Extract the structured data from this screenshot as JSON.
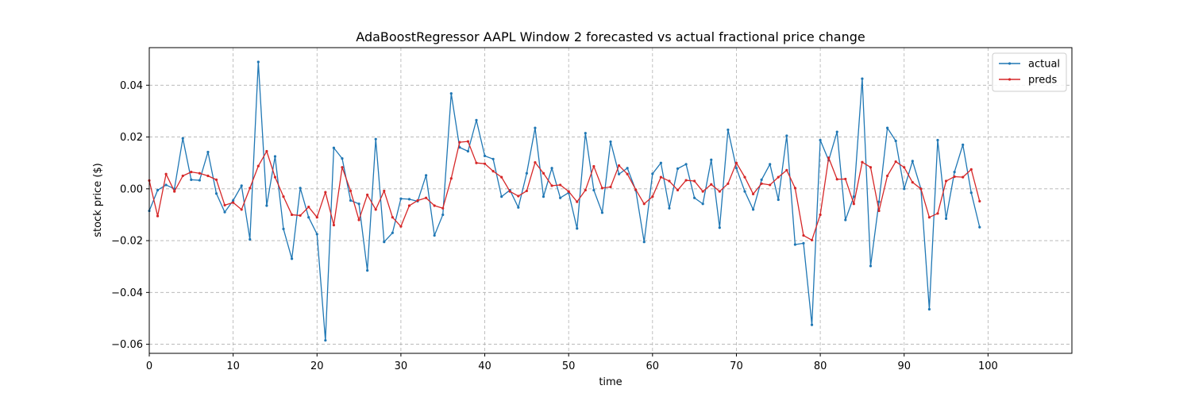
{
  "chart_data": {
    "type": "line",
    "title": "AdaBoostRegressor AAPL Window 2 forecasted vs actual fractional price change",
    "xlabel": "time",
    "ylabel": "stock price ($)",
    "xlim": [
      0,
      110
    ],
    "ylim": [
      -0.0635,
      0.0545
    ],
    "xticks": [
      0,
      10,
      20,
      30,
      40,
      50,
      60,
      70,
      80,
      90,
      100
    ],
    "yticks": [
      -0.06,
      -0.04,
      -0.02,
      0.0,
      0.02,
      0.04
    ],
    "ytick_labels": [
      "−0.06",
      "−0.04",
      "−0.02",
      "0.00",
      "0.02",
      "0.04"
    ],
    "grid": true,
    "legend_position": "top-right",
    "series": [
      {
        "name": "actual",
        "color": "#1f77b4",
        "values": [
          -0.0085,
          -0.0005,
          0.0015,
          0.0,
          0.0195,
          0.0035,
          0.0033,
          0.0142,
          -0.0018,
          -0.009,
          -0.0045,
          0.0012,
          -0.0195,
          0.049,
          -0.0065,
          0.0125,
          -0.0155,
          -0.027,
          0.0003,
          -0.011,
          -0.0175,
          -0.0585,
          0.0158,
          0.0117,
          -0.0045,
          -0.0058,
          -0.0315,
          0.0192,
          -0.0205,
          -0.017,
          -0.0038,
          -0.004,
          -0.0048,
          0.0052,
          -0.018,
          -0.01,
          0.0368,
          0.016,
          0.0145,
          0.0265,
          0.0127,
          0.0115,
          -0.003,
          -0.0005,
          -0.0072,
          0.006,
          0.0235,
          -0.003,
          0.008,
          -0.0035,
          -0.0015,
          -0.0153,
          0.0215,
          -0.0005,
          -0.0092,
          0.0182,
          0.0057,
          0.008,
          -0.0005,
          -0.0205,
          0.0058,
          0.01,
          -0.0075,
          0.0078,
          0.0095,
          -0.0035,
          -0.0058,
          0.0112,
          -0.015,
          0.0228,
          0.008,
          -0.001,
          -0.008,
          0.0035,
          0.0095,
          -0.0042,
          0.0205,
          -0.0215,
          -0.021,
          -0.0525,
          0.0188,
          0.011,
          0.022,
          -0.012,
          -0.003,
          0.0425,
          -0.0298,
          -0.005,
          0.0235,
          0.0185,
          0.0,
          0.0107,
          0.0,
          -0.0465,
          0.0188,
          -0.0115,
          0.0065,
          0.017,
          -0.0015,
          -0.0148
        ]
      },
      {
        "name": "preds",
        "color": "#d62728",
        "values": [
          0.0032,
          -0.0105,
          0.0057,
          -0.001,
          0.005,
          0.0065,
          0.006,
          0.005,
          0.0035,
          -0.0063,
          -0.0053,
          -0.008,
          0.0003,
          0.0088,
          0.0145,
          0.0045,
          -0.003,
          -0.01,
          -0.0103,
          -0.007,
          -0.011,
          -0.0013,
          -0.014,
          0.0083,
          -0.0008,
          -0.012,
          -0.0023,
          -0.008,
          -0.0008,
          -0.011,
          -0.0145,
          -0.0065,
          -0.0045,
          -0.0035,
          -0.0065,
          -0.0075,
          0.004,
          0.018,
          0.0183,
          0.01,
          0.0097,
          0.0068,
          0.0045,
          -0.001,
          -0.0028,
          -0.0008,
          0.0102,
          0.006,
          0.0012,
          0.0015,
          -0.001,
          -0.005,
          -0.0005,
          0.0087,
          0.0003,
          0.0007,
          0.009,
          0.0057,
          -0.0003,
          -0.0058,
          -0.003,
          0.0045,
          0.003,
          -0.0005,
          0.0033,
          0.003,
          -0.001,
          0.0017,
          -0.001,
          0.002,
          0.01,
          0.0045,
          -0.002,
          0.002,
          0.0015,
          0.0045,
          0.0072,
          0.0003,
          -0.018,
          -0.0198,
          -0.01,
          0.012,
          0.0037,
          0.0038,
          -0.0058,
          0.0103,
          0.0083,
          -0.0085,
          0.005,
          0.0105,
          0.0083,
          0.0025,
          0.0,
          -0.011,
          -0.0095,
          0.003,
          0.0047,
          0.0045,
          0.0075,
          -0.0048
        ]
      }
    ]
  }
}
